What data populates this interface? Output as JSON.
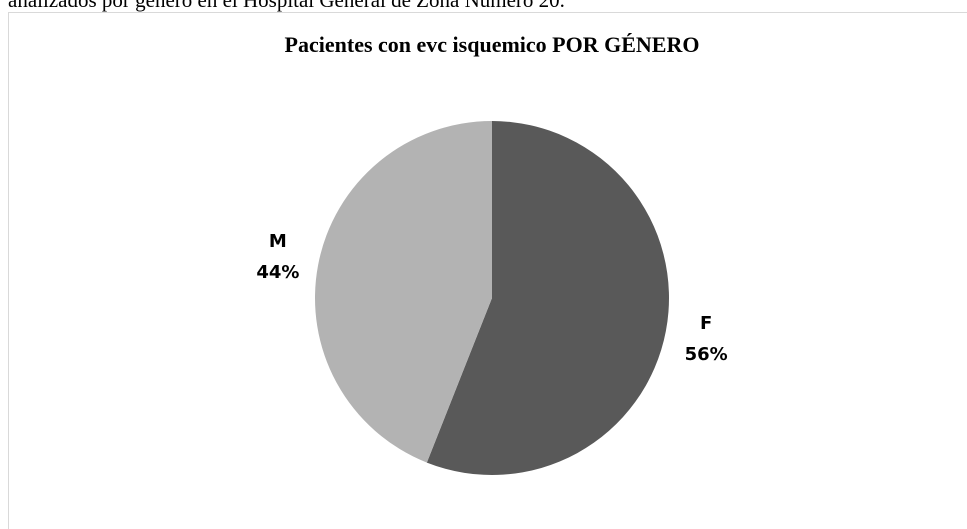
{
  "caption": "analizados por género en el Hospital General de Zona Número 20.",
  "chart_data": {
    "type": "pie",
    "title": "Pacientes con evc isquemico POR GÉNERO",
    "categories": [
      "F",
      "M"
    ],
    "values": [
      56,
      44
    ],
    "value_labels": [
      "56%",
      "44%"
    ],
    "colors": [
      "#595959",
      "#b3b3b3"
    ]
  }
}
